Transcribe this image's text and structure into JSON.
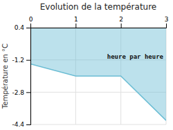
{
  "chart_data": {
    "type": "area",
    "title": "Evolution de la température",
    "y_label": "Température en °C",
    "annotation": "heure par heure",
    "x": [
      0,
      1,
      2,
      3
    ],
    "values": [
      -1.4,
      -2.0,
      -2.0,
      -4.2
    ],
    "color": "#6bbdd4",
    "xlim": [
      0,
      3
    ],
    "xticks": [
      0,
      1,
      2,
      3
    ],
    "ylim": [
      -4.4,
      0.4
    ],
    "yticks": [
      0.4,
      -1.2,
      -2.8,
      -4.4
    ],
    "grid": true
  }
}
